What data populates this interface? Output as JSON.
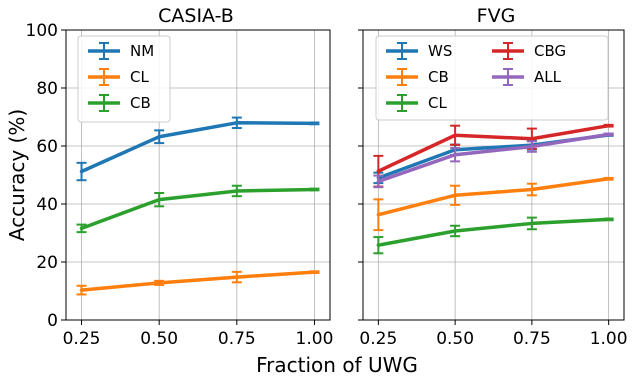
{
  "chart_data": [
    {
      "type": "line",
      "title": "CASIA-B",
      "xlabel": "Fraction of UWG",
      "ylabel": "Accuracy (%)",
      "ylim": [
        0,
        100
      ],
      "xlim": [
        0.2,
        1.05
      ],
      "x": [
        0.25,
        0.5,
        0.75,
        1.0
      ],
      "x_tick_labels": [
        "0.25",
        "0.50",
        "0.75",
        "1.00"
      ],
      "y_ticks": [
        0,
        20,
        40,
        60,
        80,
        100
      ],
      "y_tick_labels": [
        "0",
        "20",
        "40",
        "60",
        "80",
        "100"
      ],
      "grid": true,
      "legend": "top-left",
      "legend_columns": 1,
      "series": [
        {
          "name": "NM",
          "color": "#1f77b4",
          "values": [
            51.2,
            63.2,
            68.0,
            67.8
          ],
          "errors": [
            3.0,
            2.2,
            1.8,
            0.3
          ]
        },
        {
          "name": "CL",
          "color": "#ff7f0e",
          "values": [
            10.3,
            12.8,
            14.8,
            16.5
          ],
          "errors": [
            1.5,
            0.7,
            1.8,
            0.3
          ]
        },
        {
          "name": "CB",
          "color": "#2ca02c",
          "values": [
            31.6,
            41.5,
            44.5,
            45.0
          ],
          "errors": [
            1.3,
            2.3,
            1.8,
            0.3
          ]
        }
      ]
    },
    {
      "type": "line",
      "title": "FVG",
      "xlabel": "Fraction of UWG",
      "ylim": [
        0,
        100
      ],
      "xlim": [
        0.2,
        1.05
      ],
      "x": [
        0.25,
        0.5,
        0.75,
        1.0
      ],
      "x_tick_labels": [
        "0.25",
        "0.50",
        "0.75",
        "1.00"
      ],
      "y_ticks": [
        0,
        20,
        40,
        60,
        80,
        100
      ],
      "grid": true,
      "legend": "top-left",
      "legend_columns": 2,
      "series": [
        {
          "name": "WS",
          "color": "#1f77b4",
          "values": [
            49.0,
            58.7,
            60.3,
            63.8
          ],
          "errors": [
            1.8,
            1.8,
            1.5,
            0.3
          ]
        },
        {
          "name": "CB",
          "color": "#ff7f0e",
          "values": [
            36.3,
            43.0,
            45.0,
            48.7
          ],
          "errors": [
            5.3,
            3.3,
            2.0,
            0.3
          ]
        },
        {
          "name": "CL",
          "color": "#2ca02c",
          "values": [
            25.8,
            30.7,
            33.3,
            34.7
          ],
          "errors": [
            2.8,
            1.8,
            2.0,
            0.3
          ]
        },
        {
          "name": "CBG",
          "color": "#d62728",
          "values": [
            51.3,
            63.7,
            62.5,
            67.0
          ],
          "errors": [
            5.3,
            3.3,
            3.5,
            0.3
          ]
        },
        {
          "name": "ALL",
          "color": "#9467bd",
          "values": [
            47.8,
            57.0,
            59.8,
            64.0
          ],
          "errors": [
            2.0,
            2.3,
            1.8,
            0.3
          ]
        }
      ]
    }
  ],
  "figure": {
    "shared_xlabel": "Fraction of UWG"
  }
}
